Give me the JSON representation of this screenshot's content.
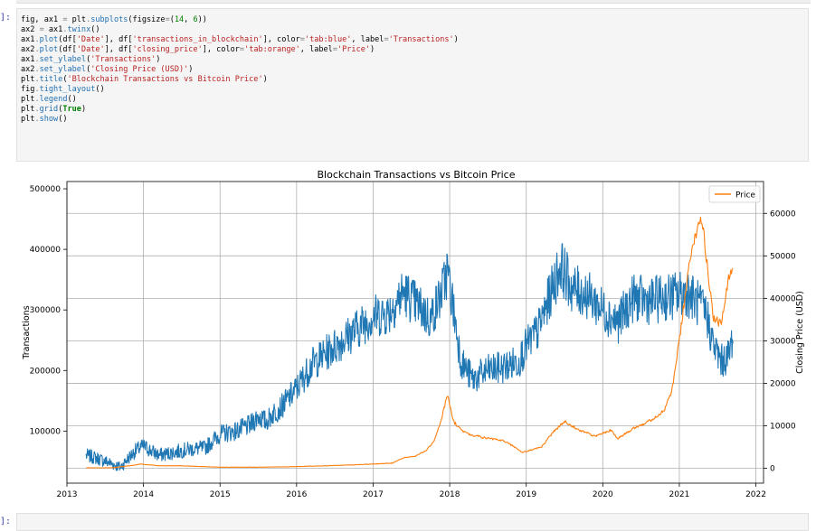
{
  "notebook": {
    "prompt_top": "]:",
    "prompt_bottom": "]:",
    "code_lines": [
      [
        [
          "v",
          "fig, ax1 "
        ],
        [
          "o",
          "="
        ],
        [
          "v",
          " plt"
        ],
        [
          "o",
          "."
        ],
        [
          "f",
          "subplots"
        ],
        [
          "v",
          "(figsize"
        ],
        [
          "o",
          "="
        ],
        [
          "v",
          "("
        ],
        [
          "n",
          "14"
        ],
        [
          "v",
          ", "
        ],
        [
          "n",
          "6"
        ],
        [
          "v",
          "))"
        ]
      ],
      [
        [
          "v",
          "ax2 "
        ],
        [
          "o",
          "="
        ],
        [
          "v",
          " ax1"
        ],
        [
          "o",
          "."
        ],
        [
          "f",
          "twinx"
        ],
        [
          "v",
          "()"
        ]
      ],
      [
        [
          "v",
          "ax1"
        ],
        [
          "o",
          "."
        ],
        [
          "f",
          "plot"
        ],
        [
          "v",
          "(df["
        ],
        [
          "s",
          "'Date'"
        ],
        [
          "v",
          "], df["
        ],
        [
          "s",
          "'transactions_in_blockchain'"
        ],
        [
          "v",
          "], color"
        ],
        [
          "o",
          "="
        ],
        [
          "s",
          "'tab:blue'"
        ],
        [
          "v",
          ", label"
        ],
        [
          "o",
          "="
        ],
        [
          "s",
          "'Transactions'"
        ],
        [
          "v",
          ")"
        ]
      ],
      [
        [
          "v",
          "ax2"
        ],
        [
          "o",
          "."
        ],
        [
          "f",
          "plot"
        ],
        [
          "v",
          "(df["
        ],
        [
          "s",
          "'Date'"
        ],
        [
          "v",
          "], df["
        ],
        [
          "s",
          "'closing_price'"
        ],
        [
          "v",
          "], color"
        ],
        [
          "o",
          "="
        ],
        [
          "s",
          "'tab:orange'"
        ],
        [
          "v",
          ", label"
        ],
        [
          "o",
          "="
        ],
        [
          "s",
          "'Price'"
        ],
        [
          "v",
          ")"
        ]
      ],
      [
        [
          "v",
          "ax1"
        ],
        [
          "o",
          "."
        ],
        [
          "f",
          "set_ylabel"
        ],
        [
          "v",
          "("
        ],
        [
          "s",
          "'Transactions'"
        ],
        [
          "v",
          ")"
        ]
      ],
      [
        [
          "v",
          "ax2"
        ],
        [
          "o",
          "."
        ],
        [
          "f",
          "set_ylabel"
        ],
        [
          "v",
          "("
        ],
        [
          "s",
          "'Closing Price (USD)'"
        ],
        [
          "v",
          ")"
        ]
      ],
      [
        [
          "v",
          "plt"
        ],
        [
          "o",
          "."
        ],
        [
          "f",
          "title"
        ],
        [
          "v",
          "("
        ],
        [
          "s",
          "'Blockchain Transactions vs Bitcoin Price'"
        ],
        [
          "v",
          ")"
        ]
      ],
      [
        [
          "v",
          "fig"
        ],
        [
          "o",
          "."
        ],
        [
          "f",
          "tight_layout"
        ],
        [
          "v",
          "()"
        ]
      ],
      [
        [
          "v",
          "plt"
        ],
        [
          "o",
          "."
        ],
        [
          "f",
          "legend"
        ],
        [
          "v",
          "()"
        ]
      ],
      [
        [
          "v",
          "plt"
        ],
        [
          "o",
          "."
        ],
        [
          "f",
          "grid"
        ],
        [
          "v",
          "("
        ],
        [
          "k",
          "True"
        ],
        [
          "v",
          ")"
        ]
      ],
      [
        [
          "v",
          "plt"
        ],
        [
          "o",
          "."
        ],
        [
          "f",
          "show"
        ],
        [
          "v",
          "()"
        ]
      ]
    ]
  },
  "chart_data": {
    "type": "line",
    "title": "Blockchain Transactions vs Bitcoin Price",
    "xlabel": "",
    "ylabel_left": "Transactions",
    "ylabel_right": "Closing Price (USD)",
    "xlim": [
      2013.0,
      2022.1
    ],
    "ylim_left": [
      14000,
      512000
    ],
    "ylim_right": [
      -3500,
      67500
    ],
    "x_ticks": [
      2013,
      2014,
      2015,
      2016,
      2017,
      2018,
      2019,
      2020,
      2021,
      2022
    ],
    "y_left_ticks": [
      100000,
      200000,
      300000,
      400000,
      500000
    ],
    "y_right_ticks": [
      0,
      10000,
      20000,
      30000,
      40000,
      50000,
      60000
    ],
    "grid": true,
    "legend": {
      "position": "top-right",
      "entries": [
        "Price"
      ]
    },
    "colors": {
      "Transactions": "#1f77b4",
      "Price": "#ff7f0e"
    },
    "series": [
      {
        "name": "Transactions",
        "axis": "left",
        "x": [
          2013.25,
          2013.4,
          2013.55,
          2013.7,
          2013.8,
          2013.9,
          2014.0,
          2014.2,
          2014.4,
          2014.6,
          2014.8,
          2015.0,
          2015.2,
          2015.4,
          2015.5,
          2015.6,
          2015.7,
          2015.8,
          2016.0,
          2016.2,
          2016.4,
          2016.6,
          2016.8,
          2017.0,
          2017.2,
          2017.4,
          2017.6,
          2017.75,
          2017.9,
          2017.97,
          2018.05,
          2018.15,
          2018.3,
          2018.5,
          2018.7,
          2018.9,
          2019.0,
          2019.15,
          2019.3,
          2019.45,
          2019.6,
          2019.8,
          2020.0,
          2020.2,
          2020.4,
          2020.6,
          2020.8,
          2021.0,
          2021.1,
          2021.25,
          2021.35,
          2021.45,
          2021.55,
          2021.65,
          2021.7
        ],
        "y": [
          60000,
          55000,
          48000,
          40000,
          55000,
          68000,
          75000,
          60000,
          65000,
          70000,
          72000,
          95000,
          100000,
          110000,
          125000,
          115000,
          130000,
          140000,
          170000,
          210000,
          230000,
          250000,
          270000,
          290000,
          295000,
          330000,
          305000,
          285000,
          330000,
          365000,
          300000,
          215000,
          185000,
          200000,
          205000,
          215000,
          240000,
          265000,
          320000,
          375000,
          335000,
          325000,
          300000,
          280000,
          320000,
          315000,
          320000,
          325000,
          330000,
          310000,
          295000,
          240000,
          215000,
          225000,
          260000
        ]
      },
      {
        "name": "Price",
        "axis": "right",
        "x": [
          2013.25,
          2013.6,
          2013.9,
          2013.95,
          2014.2,
          2014.5,
          2015.0,
          2015.5,
          2016.0,
          2016.5,
          2017.0,
          2017.25,
          2017.4,
          2017.55,
          2017.7,
          2017.8,
          2017.9,
          2017.97,
          2018.05,
          2018.15,
          2018.25,
          2018.5,
          2018.7,
          2018.85,
          2018.95,
          2019.2,
          2019.35,
          2019.5,
          2019.7,
          2019.9,
          2020.1,
          2020.2,
          2020.4,
          2020.6,
          2020.8,
          2020.9,
          2021.0,
          2021.1,
          2021.2,
          2021.3,
          2021.35,
          2021.45,
          2021.55,
          2021.65,
          2021.7
        ],
        "y": [
          100,
          120,
          800,
          1000,
          600,
          600,
          250,
          250,
          400,
          650,
          1000,
          1200,
          2500,
          2800,
          4300,
          6500,
          12000,
          17500,
          11000,
          9000,
          8000,
          7000,
          6500,
          5000,
          3700,
          5000,
          8500,
          11000,
          9000,
          7500,
          9000,
          7000,
          9500,
          11000,
          13500,
          18000,
          30000,
          44000,
          55000,
          59000,
          50000,
          35000,
          34000,
          45000,
          47000
        ]
      }
    ]
  }
}
